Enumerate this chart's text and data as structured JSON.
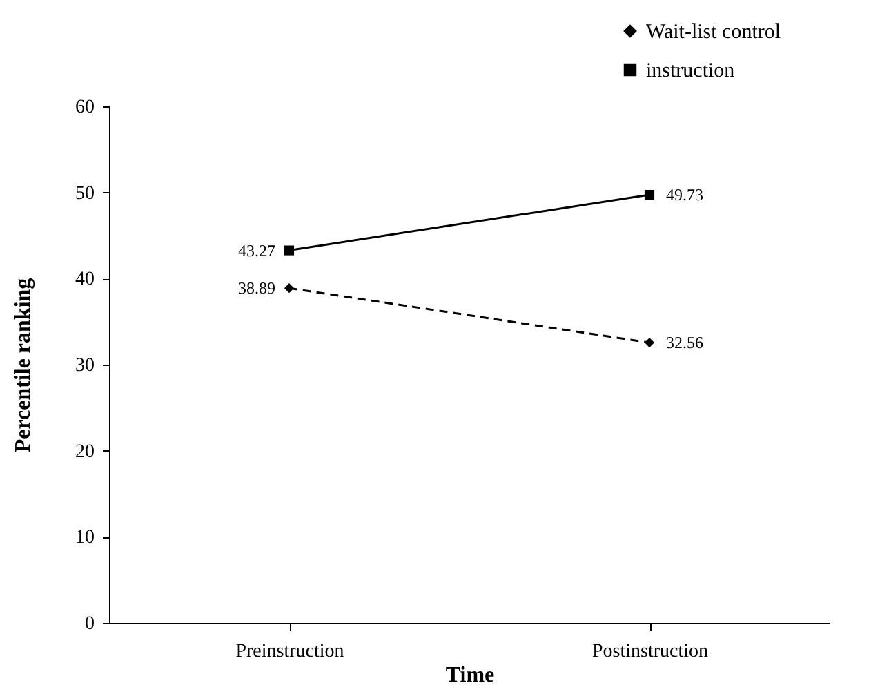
{
  "chart_data": {
    "type": "line",
    "xlabel": "Time",
    "ylabel": "Percentile ranking",
    "categories": [
      "Preinstruction",
      "Postinstruction"
    ],
    "series": [
      {
        "name": "Wait-list control",
        "color": "#000000",
        "values": [
          38.89,
          32.56
        ],
        "marker": "diamond",
        "line_style": "dashed"
      },
      {
        "name": "instruction",
        "color": "#000000",
        "values": [
          43.27,
          49.73
        ],
        "marker": "square",
        "line_style": "solid"
      }
    ],
    "ylim": [
      0,
      60
    ],
    "yticks": [
      0,
      10,
      20,
      30,
      40,
      50,
      60
    ],
    "data_labels": true,
    "legend": "top right",
    "grid": false
  }
}
